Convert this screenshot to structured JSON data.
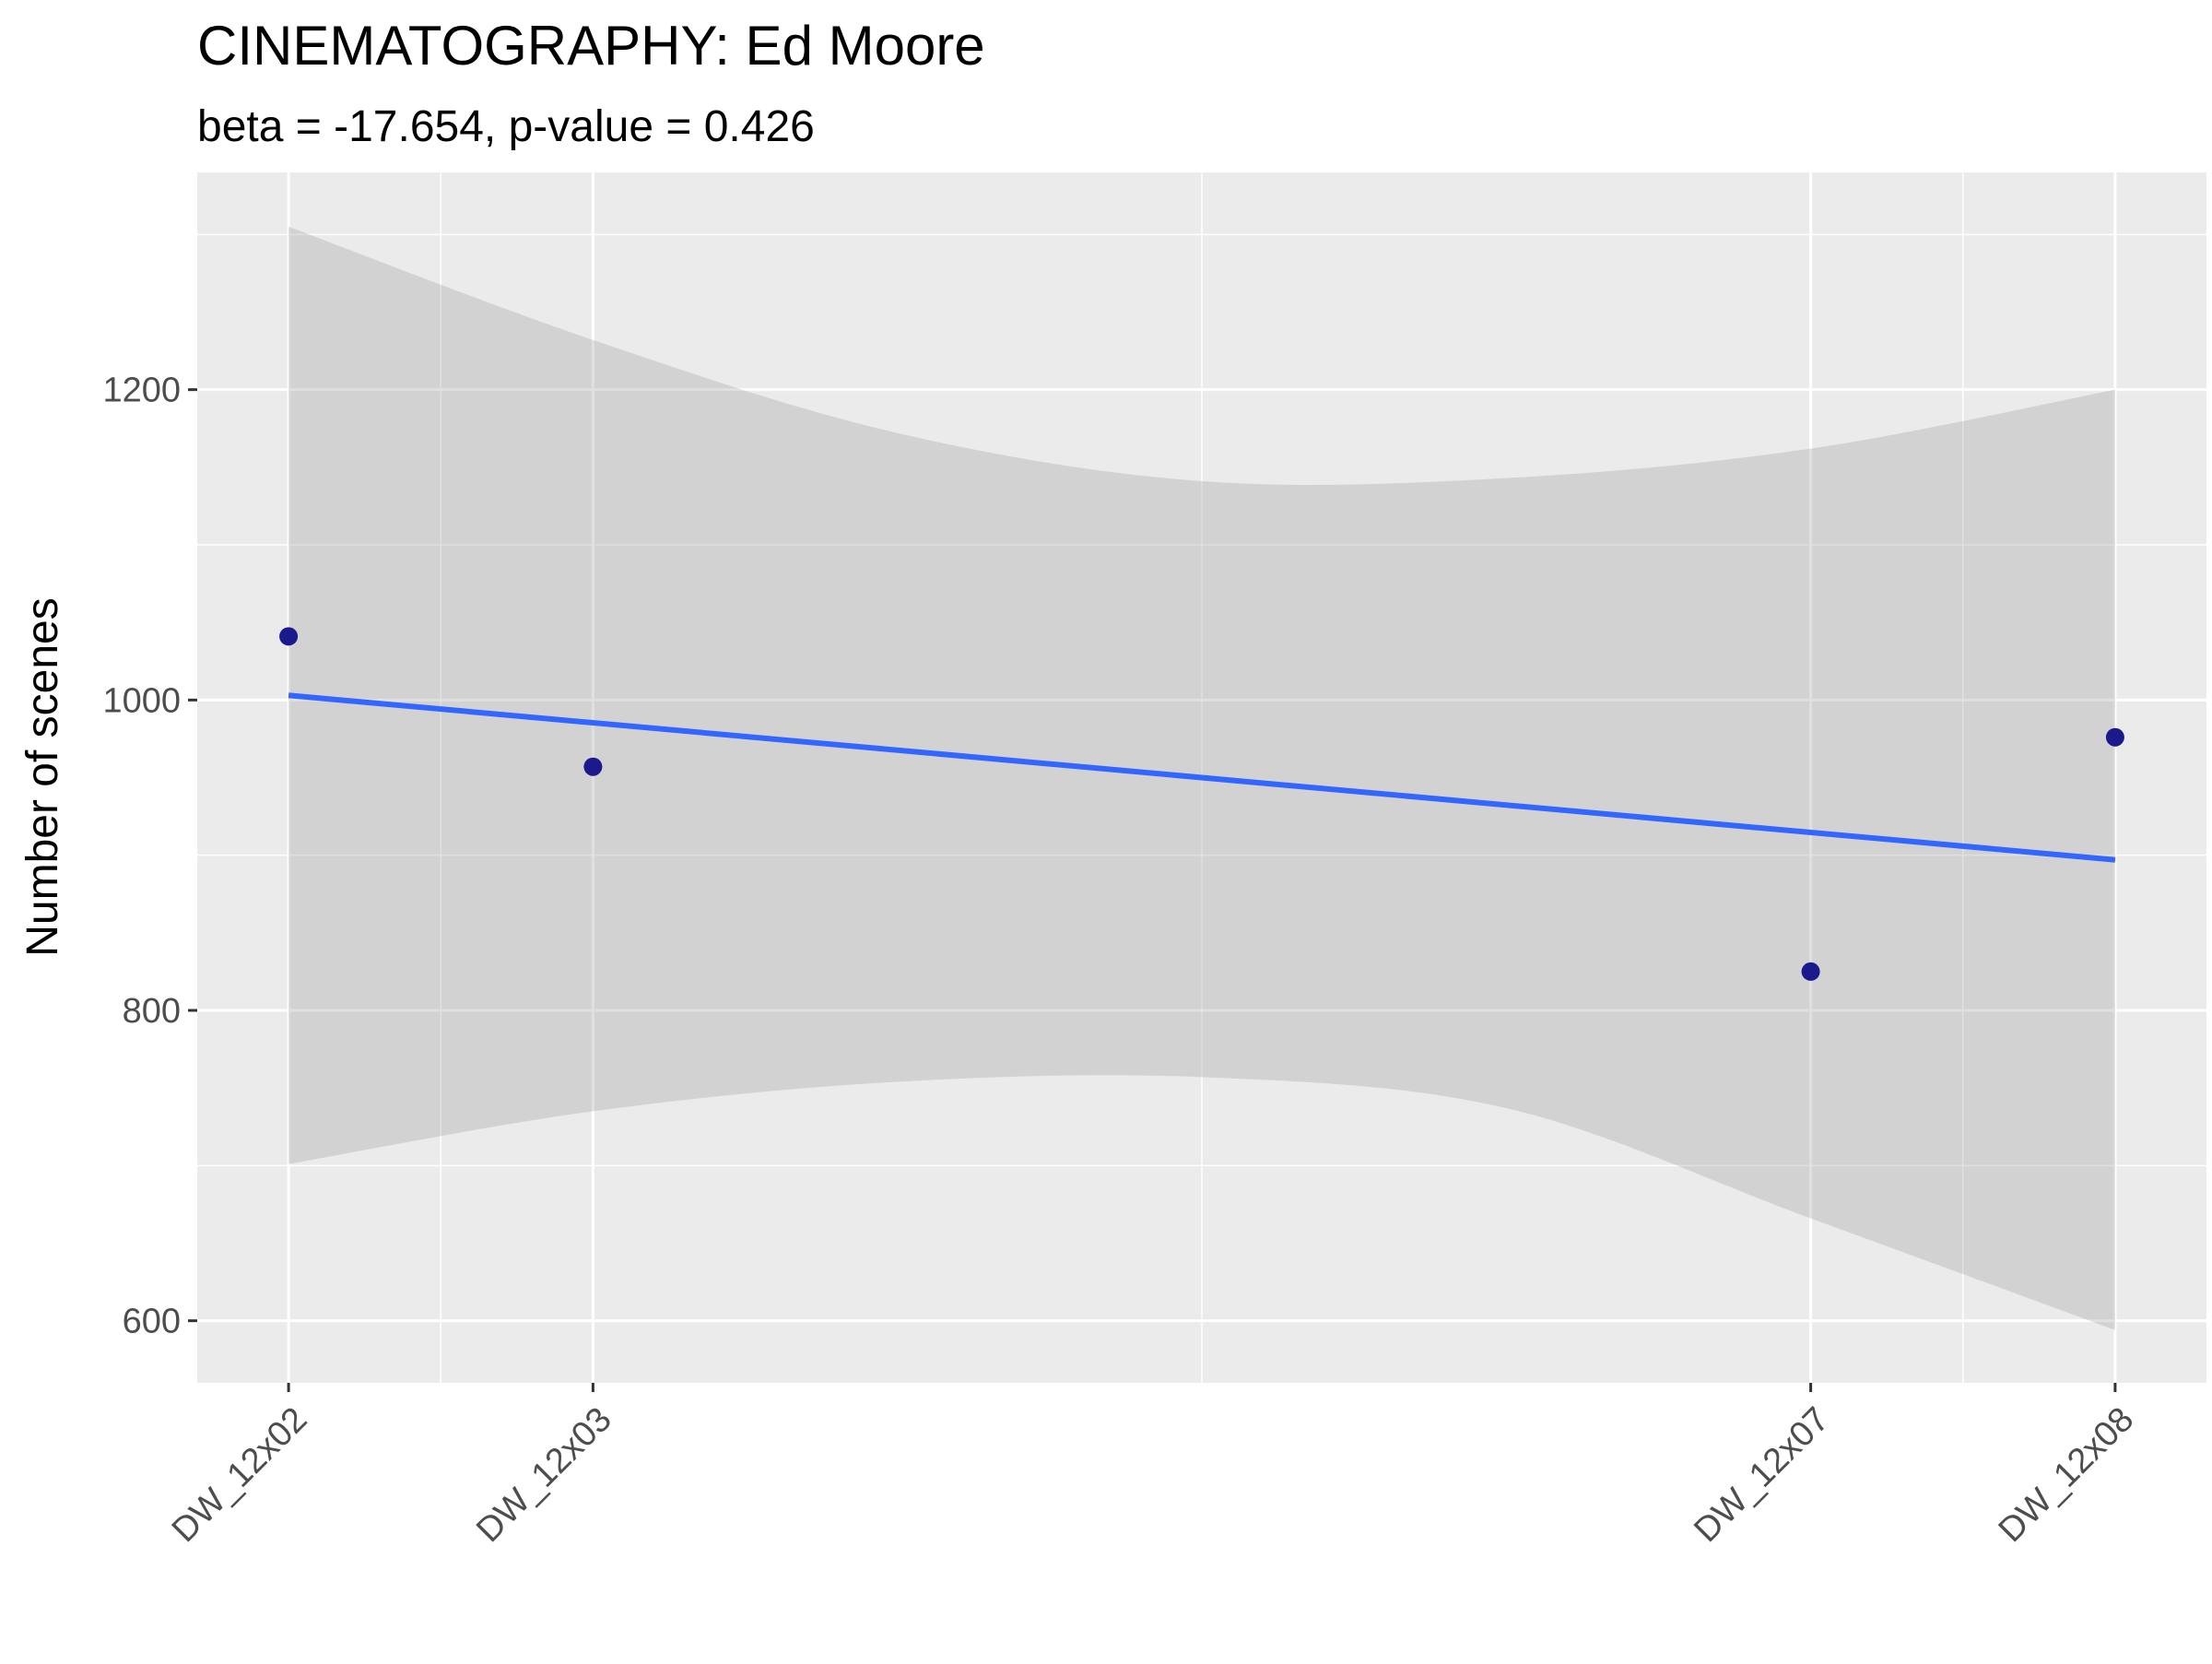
{
  "chart_data": {
    "type": "scatter",
    "title": "CINEMATOGRAPHY: Ed Moore",
    "subtitle": "beta = -17.654, p-value = 0.426",
    "xlabel": "",
    "ylabel": "Number of scenes",
    "x_tick_labels": [
      "DW_12x02",
      "DW_12x03",
      "DW_12x07",
      "DW_12x08"
    ],
    "x_positions": [
      2,
      3,
      7,
      8
    ],
    "xlim": [
      1.7,
      8.3
    ],
    "ylim": [
      560,
      1340
    ],
    "y_ticks": [
      600,
      800,
      1000,
      1200
    ],
    "grid": true,
    "points": [
      {
        "x": 2,
        "y": 1041
      },
      {
        "x": 3,
        "y": 957
      },
      {
        "x": 7,
        "y": 825
      },
      {
        "x": 8,
        "y": 976
      }
    ],
    "fit_line": {
      "x": [
        2,
        8
      ],
      "y": [
        1003,
        897
      ]
    },
    "confidence_band": {
      "x": [
        2,
        3,
        4,
        5,
        6,
        7,
        8
      ],
      "upper": [
        1305,
        1232,
        1172,
        1141,
        1143,
        1162,
        1200
      ],
      "lower": [
        701,
        735,
        754,
        757,
        737,
        666,
        594
      ]
    },
    "colors": {
      "panel_background": "#ebebeb",
      "grid_major": "#ffffff",
      "band": "#d9d9d9",
      "line": "#3366ff",
      "points": "#1a1a8c"
    }
  }
}
